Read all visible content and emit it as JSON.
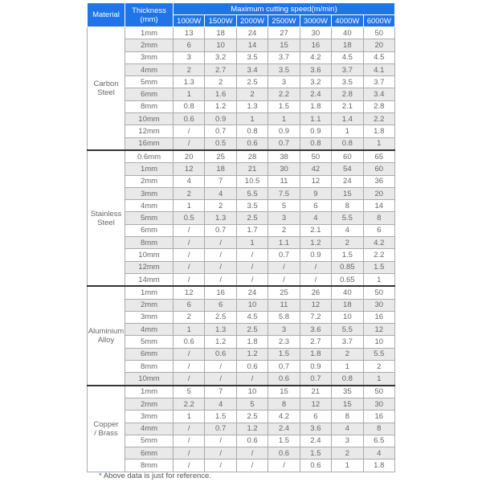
{
  "header": {
    "material": "Material",
    "thickness": "Thickness\n(mm)",
    "speed_title": "Maximum cutting speed(m/min)",
    "powers": [
      "1000W",
      "1500W",
      "2000W",
      "2500W",
      "3000W",
      "4000W",
      "6000W"
    ]
  },
  "groups": [
    {
      "material": "Carbon\nSteel",
      "rows": [
        [
          "1mm",
          "13",
          "18",
          "24",
          "27",
          "30",
          "40",
          "50"
        ],
        [
          "2mm",
          "6",
          "10",
          "14",
          "15",
          "16",
          "18",
          "20"
        ],
        [
          "3mm",
          "3",
          "3.2",
          "3.5",
          "3.7",
          "4.2",
          "4.5",
          "4.5"
        ],
        [
          "4mm",
          "2",
          "2.7",
          "3.4",
          "3.5",
          "3.6",
          "3.7",
          "4.1"
        ],
        [
          "5mm",
          "1.3",
          "2",
          "2.5",
          "3",
          "3.2",
          "3.5",
          "3.7"
        ],
        [
          "6mm",
          "1",
          "1.6",
          "2",
          "2.2",
          "2.4",
          "2.8",
          "3.4"
        ],
        [
          "8mm",
          "0.8",
          "1.2",
          "1.3",
          "1.5",
          "1.8",
          "2.1",
          "2.8"
        ],
        [
          "10mm",
          "0.6",
          "0.9",
          "1",
          "1",
          "1.1",
          "1.4",
          "2.2"
        ],
        [
          "12mm",
          "/",
          "0.7",
          "0.8",
          "0.9",
          "0.9",
          "1",
          "1.8"
        ],
        [
          "16mm",
          "/",
          "0.5",
          "0.6",
          "0.7",
          "0.8",
          "0.8",
          "1"
        ]
      ]
    },
    {
      "material": "Stainless\nSteel",
      "rows": [
        [
          "0.6mm",
          "20",
          "25",
          "28",
          "38",
          "50",
          "60",
          "65"
        ],
        [
          "1mm",
          "12",
          "18",
          "21",
          "30",
          "42",
          "54",
          "60"
        ],
        [
          "2mm",
          "4",
          "7",
          "10.5",
          "11",
          "12",
          "24",
          "36"
        ],
        [
          "3mm",
          "2",
          "4",
          "5.5",
          "7.5",
          "9",
          "15",
          "20"
        ],
        [
          "4mm",
          "1",
          "2",
          "3.5",
          "5",
          "6",
          "8",
          "14"
        ],
        [
          "5mm",
          "0.5",
          "1.3",
          "2.5",
          "3",
          "4",
          "5.5",
          "8"
        ],
        [
          "6mm",
          "/",
          "0.7",
          "1.7",
          "2",
          "2.1",
          "4",
          "6"
        ],
        [
          "8mm",
          "/",
          "/",
          "1",
          "1.1",
          "1.2",
          "2",
          "4.2"
        ],
        [
          "10mm",
          "/",
          "/",
          "/",
          "0.7",
          "0.9",
          "1.5",
          "2.2"
        ],
        [
          "12mm",
          "/",
          "/",
          "/",
          "/",
          "/",
          "0.85",
          "1.5"
        ],
        [
          "14mm",
          "/",
          "/",
          "/",
          "/",
          "/",
          "0.65",
          "1"
        ]
      ]
    },
    {
      "material": "Aluminium\nAlloy",
      "rows": [
        [
          "1mm",
          "12",
          "16",
          "24",
          "25",
          "26",
          "40",
          "50"
        ],
        [
          "2mm",
          "6",
          "6",
          "10",
          "11",
          "12",
          "18",
          "30"
        ],
        [
          "3mm",
          "2",
          "2.5",
          "4.5",
          "5.8",
          "7.2",
          "10",
          "16"
        ],
        [
          "4mm",
          "1",
          "1.3",
          "2.5",
          "3",
          "3.6",
          "5.5",
          "12"
        ],
        [
          "5mm",
          "0.6",
          "1.2",
          "1.8",
          "2.3",
          "2.7",
          "3.7",
          "10"
        ],
        [
          "6mm",
          "/",
          "0.6",
          "1.2",
          "1.5",
          "1.8",
          "2",
          "5.5"
        ],
        [
          "8mm",
          "/",
          "/",
          "0.6",
          "0.7",
          "0.9",
          "1",
          "2"
        ],
        [
          "10mm",
          "/",
          "/",
          "/",
          "0.6",
          "0.7",
          "0.8",
          "1"
        ]
      ]
    },
    {
      "material": "Copper\n/ Brass",
      "rows": [
        [
          "1mm",
          "5",
          "7",
          "10",
          "15",
          "21",
          "35",
          "50"
        ],
        [
          "2mm",
          "2.2",
          "4",
          "5",
          "8",
          "12",
          "15",
          "30"
        ],
        [
          "3mm",
          "1",
          "1.5",
          "2.5",
          "4.2",
          "6",
          "8",
          "16"
        ],
        [
          "4mm",
          "/",
          "0.7",
          "1.2",
          "2.4",
          "3.6",
          "4",
          "8"
        ],
        [
          "5mm",
          "/",
          "/",
          "0.6",
          "1.5",
          "2.4",
          "3",
          "6.5"
        ],
        [
          "6mm",
          "/",
          "/",
          "/",
          "0.6",
          "1.5",
          "2",
          "4"
        ],
        [
          "8mm",
          "/",
          "/",
          "/",
          "/",
          "0.6",
          "1",
          "1.8"
        ]
      ]
    }
  ],
  "footnote": {
    "star": "*",
    "text": " Above data is just for reference."
  },
  "colors": {
    "header_bg": "#1f74e8",
    "alt_row": "#e9e9e9"
  }
}
